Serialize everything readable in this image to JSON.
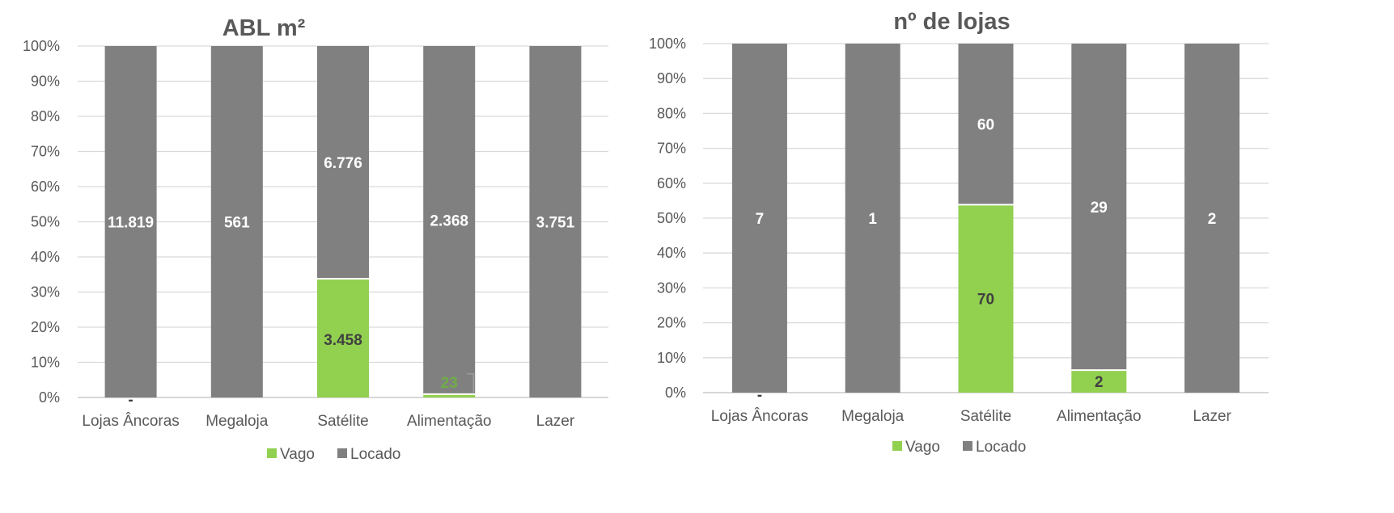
{
  "colors": {
    "vago": "#92d050",
    "locado": "#808080",
    "grid": "#d9d9d9",
    "axis_text": "#595959",
    "title_text": "#595959",
    "label_on_dark": "#ffffff",
    "label_on_green": "#404040",
    "label_green_small": "#70ad47",
    "background": "#ffffff"
  },
  "chart_data": [
    {
      "type": "bar",
      "stacked": "percent",
      "title": "ABL m²",
      "categories": [
        "Lojas Âncoras",
        "Megaloja",
        "Satélite",
        "Alimentação",
        "Lazer"
      ],
      "series": [
        {
          "name": "Vago",
          "values": [
            0,
            0,
            3458,
            23,
            0
          ],
          "labels": [
            "-",
            "",
            "3.458",
            "23",
            ""
          ]
        },
        {
          "name": "Locado",
          "values": [
            11819,
            561,
            6776,
            2368,
            3751
          ],
          "labels": [
            "11.819",
            "561",
            "6.776",
            "2.368",
            "3.751"
          ]
        }
      ],
      "yticks": [
        "0%",
        "10%",
        "20%",
        "30%",
        "40%",
        "50%",
        "60%",
        "70%",
        "80%",
        "90%",
        "100%"
      ],
      "ylim": [
        0,
        100
      ],
      "grid": true,
      "legend": "bottom"
    },
    {
      "type": "bar",
      "stacked": "percent",
      "title": "nº de lojas",
      "categories": [
        "Lojas Âncoras",
        "Megaloja",
        "Satélite",
        "Alimentação",
        "Lazer"
      ],
      "series": [
        {
          "name": "Vago",
          "values": [
            0,
            0,
            70,
            2,
            0
          ],
          "labels": [
            "-",
            "",
            "70",
            "2",
            ""
          ]
        },
        {
          "name": "Locado",
          "values": [
            7,
            1,
            60,
            29,
            2
          ],
          "labels": [
            "7",
            "1",
            "60",
            "29",
            "2"
          ]
        }
      ],
      "yticks": [
        "0%",
        "10%",
        "20%",
        "30%",
        "40%",
        "50%",
        "60%",
        "70%",
        "80%",
        "90%",
        "100%"
      ],
      "ylim": [
        0,
        100
      ],
      "grid": true,
      "legend": "bottom"
    }
  ]
}
